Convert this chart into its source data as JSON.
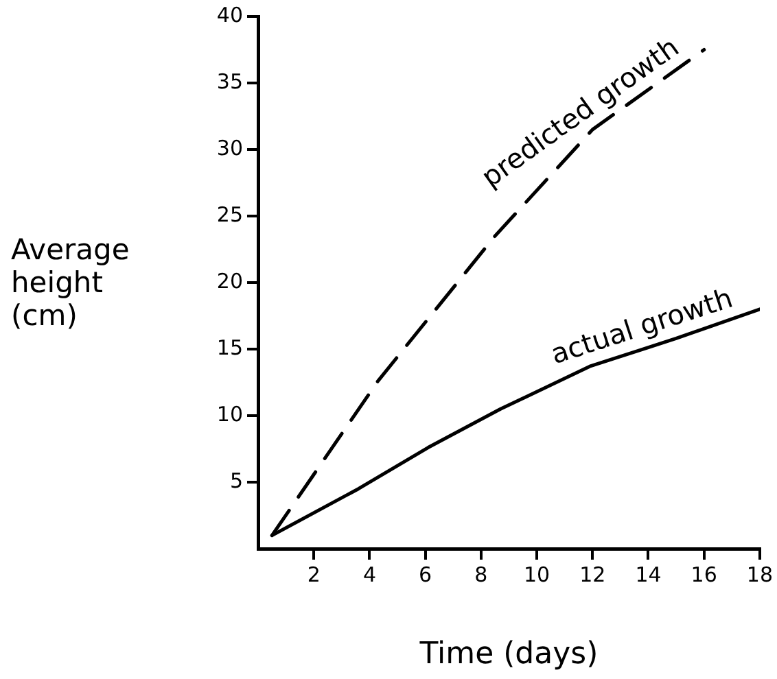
{
  "chart_data": {
    "type": "line",
    "xlabel": "Time (days)",
    "ylabel": "Average height (cm)",
    "xlim": [
      0,
      18
    ],
    "ylim": [
      0,
      40
    ],
    "xticks": [
      2,
      4,
      6,
      8,
      10,
      12,
      14,
      16,
      18
    ],
    "yticks": [
      5,
      10,
      15,
      20,
      25,
      30,
      35,
      40
    ],
    "grid": false,
    "legend": false,
    "marker": "none",
    "series": [
      {
        "color": "#000000",
        "line_style": "dashed",
        "x": [
          0.5,
          4.3,
          8.5,
          12,
          16
        ],
        "values": [
          1,
          12.6,
          23.5,
          31.5,
          37.5
        ]
      },
      {
        "color": "#000000",
        "line_style": "solid",
        "x": [
          0.5,
          3.6,
          6.1,
          8.7,
          11.9,
          15,
          18
        ],
        "values": [
          1,
          4.5,
          7.6,
          10.5,
          13.7,
          15.8,
          18
        ]
      }
    ],
    "annotations": [
      {
        "text": "predicted growth",
        "x": 12,
        "y": 31.5
      },
      {
        "text": "actual growth",
        "x": 14,
        "y": 15.2
      }
    ]
  }
}
